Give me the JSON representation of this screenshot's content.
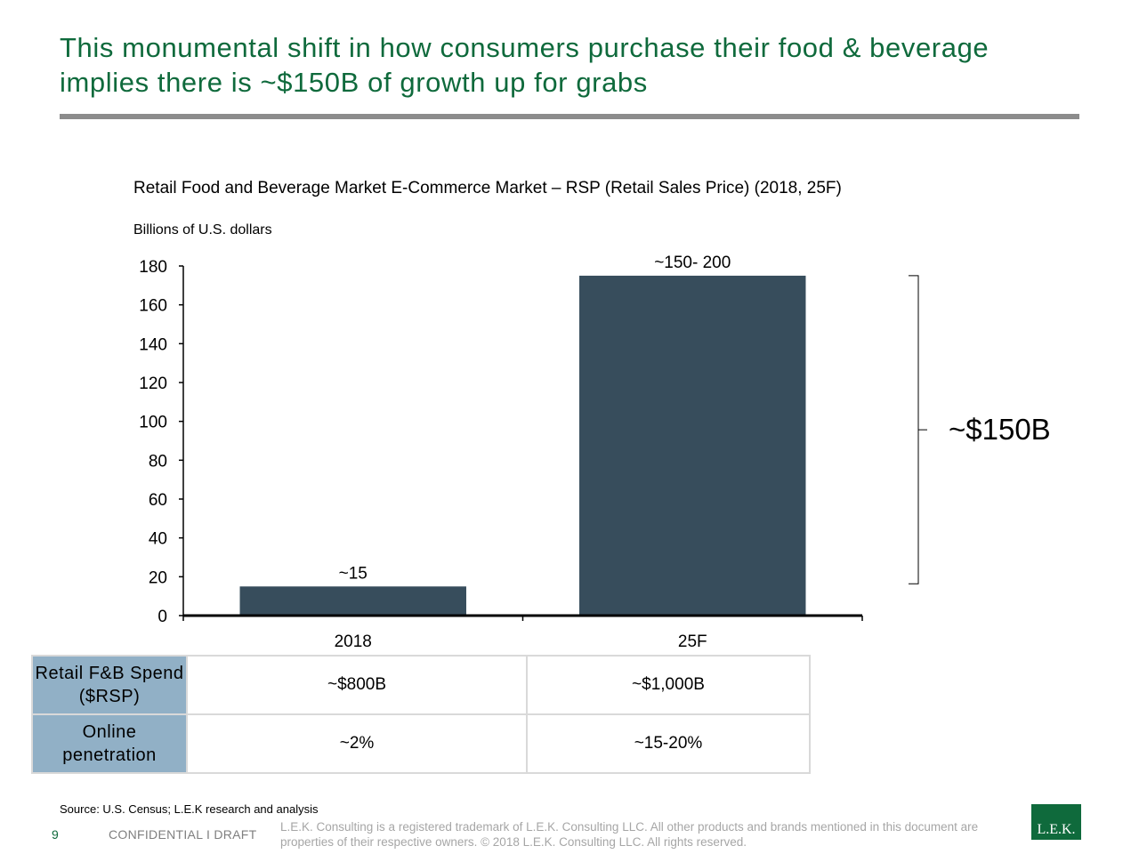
{
  "slide": {
    "headline": "This monumental shift in how consumers purchase their food & beverage implies there is ~$150B of growth up for grabs",
    "source": "Source: U.S. Census; L.E.K research and analysis",
    "page_number": "9",
    "confidential": "CONFIDENTIAL  I  DRAFT",
    "legal": "L.E.K. Consulting is a registered trademark of L.E.K. Consulting LLC.  All other products and brands mentioned in this document are properties of their respective owners. © 2018 L.E.K. Consulting LLC.  All rights reserved.",
    "logo_text": "L.E.K.",
    "colors": {
      "headline": "#0f6a3c",
      "bar": "#374d5c",
      "table_header": "#91b0c6"
    }
  },
  "chart_data": {
    "type": "bar",
    "title": "Retail Food and Beverage Market E-Commerce Market – RSP (Retail Sales Price) (2018, 25F)",
    "ylabel": "Billions of U.S. dollars",
    "categories": [
      "2018",
      "25F"
    ],
    "values": [
      15,
      175
    ],
    "data_labels": [
      "~15",
      "~150- 200"
    ],
    "ylim": [
      0,
      180
    ],
    "yticks": [
      0,
      20,
      40,
      60,
      80,
      100,
      120,
      140,
      160,
      180
    ],
    "grid": false,
    "bracket_label": "~$150B"
  },
  "table": {
    "rows": [
      {
        "label": "Retail F&B Spend ($RSP)",
        "values": [
          "~$800B",
          "~$1,000B"
        ]
      },
      {
        "label": "Online penetration",
        "values": [
          "~2%",
          "~15-20%"
        ]
      }
    ]
  }
}
